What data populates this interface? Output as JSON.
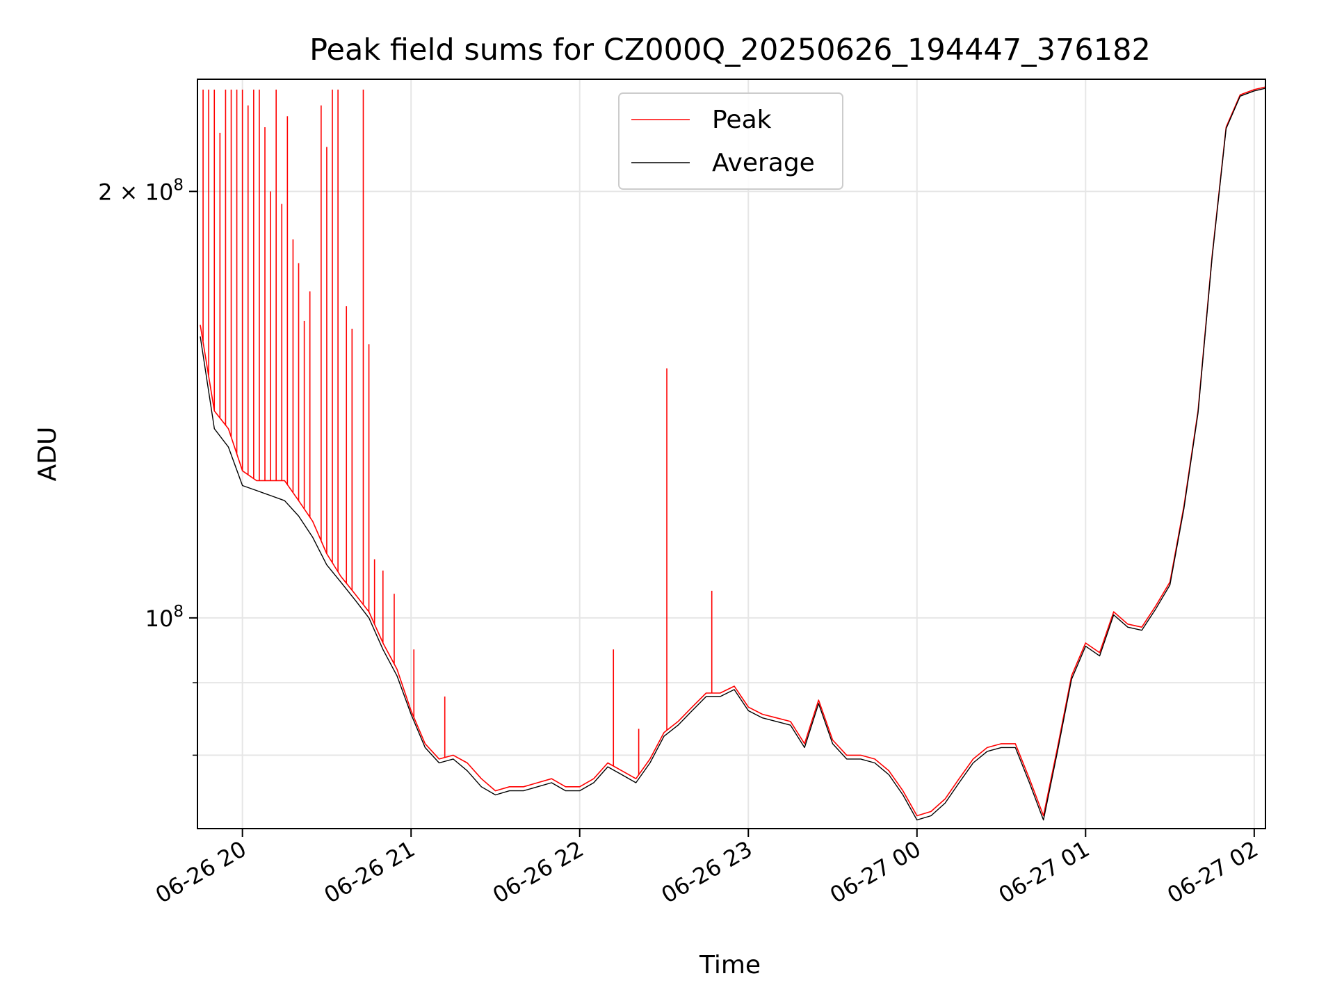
{
  "chart_data": {
    "type": "line",
    "title": "Peak field sums for CZ000Q_20250626_194447_376182",
    "xlabel": "Time",
    "ylabel": "ADU",
    "x_axis_type": "datetime",
    "xlim": [
      "2025-06-26 19:44",
      "2025-06-27 02:04"
    ],
    "y_scale": "log",
    "ylim": [
      71000000,
      240000000
    ],
    "grid": true,
    "legend": {
      "position": "top-center",
      "entries": [
        "Peak",
        "Average"
      ]
    },
    "x_ticks": [
      {
        "value": "2025-06-26 20:00",
        "label": "06-26 20"
      },
      {
        "value": "2025-06-26 21:00",
        "label": "06-26 21"
      },
      {
        "value": "2025-06-26 22:00",
        "label": "06-26 22"
      },
      {
        "value": "2025-06-26 23:00",
        "label": "06-26 23"
      },
      {
        "value": "2025-06-27 00:00",
        "label": "06-27 00"
      },
      {
        "value": "2025-06-27 01:00",
        "label": "06-27 01"
      },
      {
        "value": "2025-06-27 02:00",
        "label": "06-27 02"
      }
    ],
    "y_ticks_major": [
      {
        "value": 100000000,
        "base": "10",
        "exp": "8",
        "mantissa": ""
      },
      {
        "value": 200000000,
        "base": "10",
        "exp": "8",
        "mantissa": "2 × "
      }
    ],
    "y_ticks_minor": [
      80000000,
      90000000
    ],
    "x_time": [
      "2025-06-26 19:45",
      "2025-06-26 19:50",
      "2025-06-26 19:55",
      "2025-06-26 20:00",
      "2025-06-26 20:05",
      "2025-06-26 20:10",
      "2025-06-26 20:15",
      "2025-06-26 20:20",
      "2025-06-26 20:25",
      "2025-06-26 20:30",
      "2025-06-26 20:35",
      "2025-06-26 20:40",
      "2025-06-26 20:45",
      "2025-06-26 20:50",
      "2025-06-26 20:55",
      "2025-06-26 21:00",
      "2025-06-26 21:05",
      "2025-06-26 21:10",
      "2025-06-26 21:15",
      "2025-06-26 21:20",
      "2025-06-26 21:25",
      "2025-06-26 21:30",
      "2025-06-26 21:35",
      "2025-06-26 21:40",
      "2025-06-26 21:45",
      "2025-06-26 21:50",
      "2025-06-26 21:55",
      "2025-06-26 22:00",
      "2025-06-26 22:05",
      "2025-06-26 22:10",
      "2025-06-26 22:15",
      "2025-06-26 22:20",
      "2025-06-26 22:25",
      "2025-06-26 22:30",
      "2025-06-26 22:35",
      "2025-06-26 22:40",
      "2025-06-26 22:45",
      "2025-06-26 22:50",
      "2025-06-26 22:55",
      "2025-06-26 23:00",
      "2025-06-26 23:05",
      "2025-06-26 23:10",
      "2025-06-26 23:15",
      "2025-06-26 23:20",
      "2025-06-26 23:25",
      "2025-06-26 23:30",
      "2025-06-26 23:35",
      "2025-06-26 23:40",
      "2025-06-26 23:45",
      "2025-06-26 23:50",
      "2025-06-26 23:55",
      "2025-06-27 00:00",
      "2025-06-27 00:05",
      "2025-06-27 00:10",
      "2025-06-27 00:15",
      "2025-06-27 00:20",
      "2025-06-27 00:25",
      "2025-06-27 00:30",
      "2025-06-27 00:35",
      "2025-06-27 00:40",
      "2025-06-27 00:45",
      "2025-06-27 00:50",
      "2025-06-27 00:55",
      "2025-06-27 01:00",
      "2025-06-27 01:05",
      "2025-06-27 01:10",
      "2025-06-27 01:15",
      "2025-06-27 01:20",
      "2025-06-27 01:25",
      "2025-06-27 01:30",
      "2025-06-27 01:35",
      "2025-06-27 01:40",
      "2025-06-27 01:45",
      "2025-06-27 01:50",
      "2025-06-27 01:55",
      "2025-06-27 02:00",
      "2025-06-27 02:04"
    ],
    "series": [
      {
        "name": "Peak",
        "color": "#ff0000",
        "values": [
          161000000,
          140000000,
          136000000,
          127000000,
          125000000,
          125000000,
          125000000,
          121000000,
          117000000,
          111000000,
          107000000,
          104000000,
          101000000,
          96000000,
          92000000,
          86000000,
          81500000,
          79500000,
          80000000,
          79000000,
          77000000,
          75500000,
          76000000,
          76000000,
          76500000,
          77000000,
          76000000,
          76000000,
          77000000,
          79000000,
          78000000,
          77000000,
          79500000,
          83000000,
          84500000,
          86500000,
          88500000,
          88500000,
          89500000,
          86500000,
          85500000,
          85000000,
          84500000,
          81500000,
          87500000,
          82000000,
          80000000,
          80000000,
          79500000,
          78000000,
          75500000,
          72500000,
          73000000,
          74500000,
          77000000,
          79500000,
          81000000,
          81500000,
          81500000,
          77000000,
          72500000,
          81000000,
          91000000,
          96000000,
          94500000,
          101000000,
          99000000,
          98500000,
          102000000,
          106000000,
          120000000,
          140000000,
          180000000,
          222000000,
          234000000,
          236000000,
          237000000
        ],
        "spikes": [
          {
            "time": "2025-06-26 19:46",
            "value": 236000000
          },
          {
            "time": "2025-06-26 19:48",
            "value": 236000000
          },
          {
            "time": "2025-06-26 19:50",
            "value": 236000000
          },
          {
            "time": "2025-06-26 19:52",
            "value": 220000000
          },
          {
            "time": "2025-06-26 19:54",
            "value": 236000000
          },
          {
            "time": "2025-06-26 19:56",
            "value": 236000000
          },
          {
            "time": "2025-06-26 19:58",
            "value": 236000000
          },
          {
            "time": "2025-06-26 20:00",
            "value": 236000000
          },
          {
            "time": "2025-06-26 20:02",
            "value": 230000000
          },
          {
            "time": "2025-06-26 20:04",
            "value": 236000000
          },
          {
            "time": "2025-06-26 20:06",
            "value": 236000000
          },
          {
            "time": "2025-06-26 20:08",
            "value": 222000000
          },
          {
            "time": "2025-06-26 20:10",
            "value": 200000000
          },
          {
            "time": "2025-06-26 20:12",
            "value": 236000000
          },
          {
            "time": "2025-06-26 20:14",
            "value": 196000000
          },
          {
            "time": "2025-06-26 20:16",
            "value": 226000000
          },
          {
            "time": "2025-06-26 20:18",
            "value": 185000000
          },
          {
            "time": "2025-06-26 20:20",
            "value": 178000000
          },
          {
            "time": "2025-06-26 20:22",
            "value": 162000000
          },
          {
            "time": "2025-06-26 20:24",
            "value": 170000000
          },
          {
            "time": "2025-06-26 20:28",
            "value": 230000000
          },
          {
            "time": "2025-06-26 20:30",
            "value": 215000000
          },
          {
            "time": "2025-06-26 20:32",
            "value": 236000000
          },
          {
            "time": "2025-06-26 20:34",
            "value": 236000000
          },
          {
            "time": "2025-06-26 20:37",
            "value": 166000000
          },
          {
            "time": "2025-06-26 20:39",
            "value": 160000000
          },
          {
            "time": "2025-06-26 20:43",
            "value": 236000000
          },
          {
            "time": "2025-06-26 20:45",
            "value": 156000000
          },
          {
            "time": "2025-06-26 20:47",
            "value": 110000000
          },
          {
            "time": "2025-06-26 20:50",
            "value": 108000000
          },
          {
            "time": "2025-06-26 20:54",
            "value": 104000000
          },
          {
            "time": "2025-06-26 21:01",
            "value": 95000000
          },
          {
            "time": "2025-06-26 21:12",
            "value": 88000000
          },
          {
            "time": "2025-06-26 22:12",
            "value": 95000000
          },
          {
            "time": "2025-06-26 22:21",
            "value": 83500000
          },
          {
            "time": "2025-06-26 22:31",
            "value": 150000000
          },
          {
            "time": "2025-06-26 22:47",
            "value": 104500000
          }
        ]
      },
      {
        "name": "Average",
        "color": "#000000",
        "values": [
          158000000,
          136000000,
          132000000,
          124000000,
          123000000,
          122000000,
          121000000,
          118000000,
          114000000,
          109000000,
          106000000,
          103000000,
          100000000,
          95000000,
          91000000,
          85500000,
          81000000,
          79000000,
          79500000,
          78000000,
          76000000,
          75000000,
          75500000,
          75500000,
          76000000,
          76500000,
          75500000,
          75500000,
          76500000,
          78500000,
          77500000,
          76500000,
          79000000,
          82500000,
          84000000,
          86000000,
          88000000,
          88000000,
          89000000,
          86000000,
          85000000,
          84500000,
          84000000,
          81000000,
          87000000,
          81500000,
          79500000,
          79500000,
          79000000,
          77500000,
          75000000,
          72000000,
          72500000,
          74000000,
          76500000,
          79000000,
          80500000,
          81000000,
          81000000,
          76500000,
          72000000,
          80500000,
          90500000,
          95500000,
          94000000,
          100500000,
          98500000,
          98000000,
          101500000,
          105500000,
          119500000,
          139500000,
          179500000,
          221500000,
          233500000,
          235500000,
          236500000
        ]
      }
    ]
  }
}
